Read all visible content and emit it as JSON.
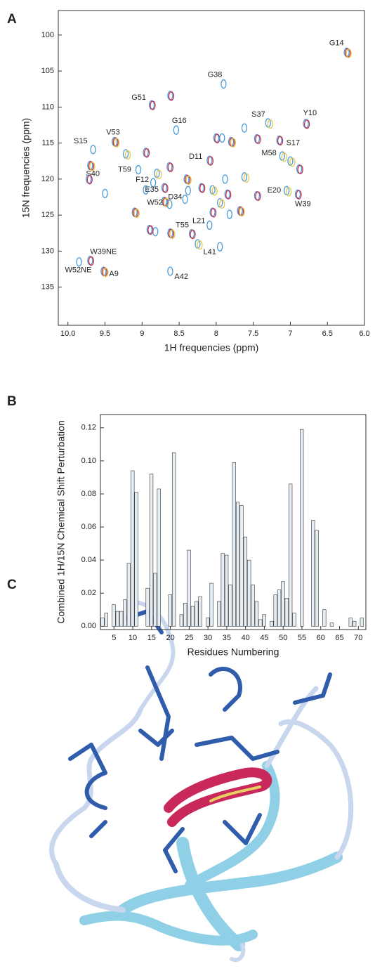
{
  "panel_labels": [
    "A",
    "B",
    "C"
  ],
  "chart_data": [
    {
      "type": "scatter",
      "xlabel": "1H frequencies (ppm)",
      "ylabel": "15N  frequencies (ppm)",
      "xlim": [
        10.13,
        6.0
      ],
      "ylim": [
        140.3,
        96.6
      ],
      "xticks": [
        {
          "value": 10,
          "label": "10.0"
        },
        9.5,
        9,
        8.5,
        8,
        7.5,
        7,
        6.5,
        {
          "value": 6,
          "label": "6.0"
        }
      ],
      "yticks": [
        100,
        105,
        110,
        115,
        120,
        125,
        130,
        135
      ],
      "contour_colors": [
        "#4a9ad8",
        "#c8304a",
        "#e2c84a"
      ],
      "x": [
        6.24,
        7.9,
        8.87,
        7.3,
        6.79,
        8.54,
        9.37,
        9.66,
        7.15,
        7.11,
        8.09,
        9.05,
        9.7,
        8.85,
        8.7,
        7.05,
        6.9,
        8.42,
        8.7,
        8.09,
        8.33,
        8.25,
        9.7,
        9.85,
        9.52,
        8.62,
        8.62,
        9.22,
        9.72,
        9.5,
        9.1,
        8.95,
        8.95,
        8.8,
        8.63,
        8.63,
        8.4,
        8.38,
        8.2,
        8.05,
        8.0,
        7.92,
        7.8,
        7.88,
        7.85,
        7.95,
        8.05,
        7.82,
        7.68,
        7.62,
        7.45,
        7.0,
        6.88,
        8.82,
        8.62,
        7.95,
        8.9,
        7.62,
        7.45
      ],
      "y": [
        102.4,
        106.8,
        109.7,
        112.2,
        112.3,
        113.2,
        114.8,
        115.9,
        114.6,
        116.8,
        117.4,
        118.7,
        118.1,
        120.5,
        121.2,
        121.6,
        122.1,
        122.8,
        123.1,
        126.4,
        127.6,
        129.0,
        131.3,
        131.5,
        132.8,
        132.8,
        108.4,
        116.5,
        120.0,
        122.0,
        124.6,
        121.5,
        116.3,
        119.2,
        118.3,
        123.5,
        120.0,
        121.6,
        121.2,
        121.5,
        114.3,
        114.3,
        114.8,
        120.0,
        122.1,
        123.3,
        124.6,
        124.9,
        124.4,
        112.9,
        114.4,
        117.5,
        118.6,
        127.3,
        127.5,
        129.4,
        127.0,
        119.7,
        122.3
      ],
      "labels": [
        "G14",
        "G38",
        "G51",
        "S37",
        "Y10",
        "G16",
        "V53",
        "S15",
        "S17",
        "M58",
        "D11",
        "T59",
        "S40",
        "F12",
        "E35",
        "E20",
        "W39",
        "D34",
        "W52",
        "L21",
        "T55",
        "L41",
        "W39NE",
        "W52NE",
        "A9",
        "A42",
        null,
        null,
        null,
        null,
        null,
        null,
        null,
        null,
        null,
        null,
        null,
        null,
        null,
        null,
        null,
        null,
        null,
        null,
        null,
        null,
        null,
        null,
        null,
        null,
        null,
        null,
        null,
        null,
        null,
        null,
        null,
        null,
        null
      ]
    },
    {
      "type": "bar",
      "xlabel": "Residues Numbering",
      "ylabel": "Combined 1H/15N Chemical Shift Perturbation",
      "xlim": [
        1.4,
        72
      ],
      "ylim": [
        -0.002,
        0.128
      ],
      "xticks": [
        5,
        10,
        15,
        20,
        25,
        30,
        35,
        40,
        45,
        50,
        55,
        60,
        65,
        70
      ],
      "yticks": [
        {
          "value": 0,
          "label": "0.00"
        },
        0.02,
        0.04,
        0.06,
        0.08,
        {
          "value": 0.1,
          "label": "0.10"
        },
        0.12
      ],
      "color": "#e6eef4",
      "x": [
        2,
        3,
        5,
        6,
        7,
        8,
        9,
        10,
        11,
        14,
        15,
        16,
        17,
        20,
        21,
        23,
        24,
        25,
        26,
        27,
        28,
        30,
        31,
        33,
        34,
        35,
        36,
        37,
        38,
        39,
        40,
        41,
        42,
        43,
        44,
        45,
        47,
        48,
        49,
        50,
        51,
        52,
        53,
        55,
        58,
        59,
        61,
        63,
        68,
        69,
        71
      ],
      "values": [
        0.005,
        0.008,
        0.013,
        0.009,
        0.009,
        0.016,
        0.038,
        0.094,
        0.081,
        0.023,
        0.092,
        0.032,
        0.083,
        0.019,
        0.105,
        0.007,
        0.014,
        0.046,
        0.012,
        0.015,
        0.018,
        0.005,
        0.026,
        0.015,
        0.044,
        0.043,
        0.025,
        0.099,
        0.075,
        0.073,
        0.054,
        0.04,
        0.025,
        0.015,
        0.004,
        0.007,
        0.003,
        0.019,
        0.022,
        0.027,
        0.017,
        0.086,
        0.008,
        0.119,
        0.064,
        0.058,
        0.01,
        0.002,
        0.005,
        0.003,
        0.005
      ]
    }
  ]
}
